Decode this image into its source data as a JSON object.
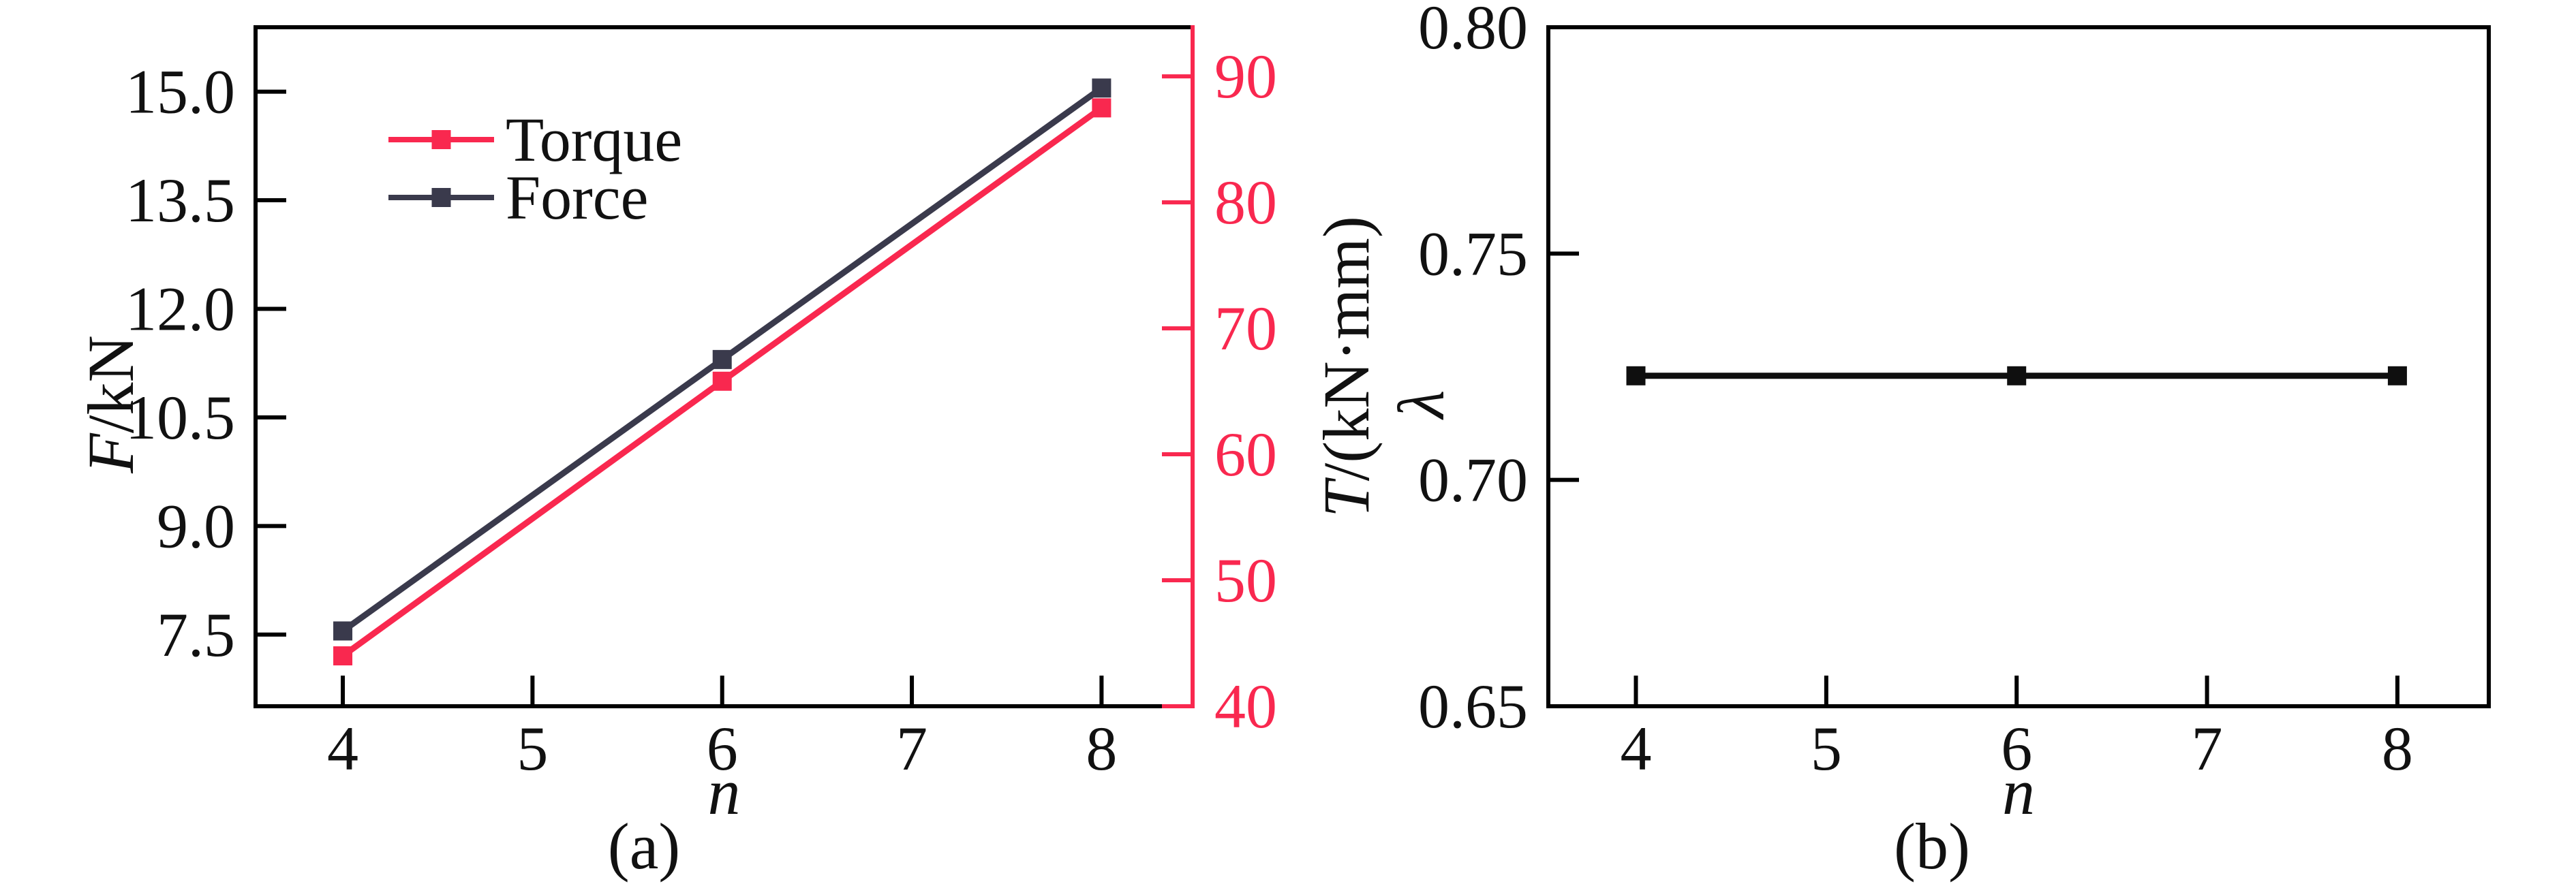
{
  "figure": {
    "background": "#ffffff",
    "axis_color": "#000000",
    "accent_red": "#F9284F",
    "accent_dark": "#3A3A4C"
  },
  "chart_data": [
    {
      "id": "a",
      "type": "line",
      "caption": "(a)",
      "x": {
        "label_parts": [
          {
            "text": "n",
            "italic": true
          }
        ],
        "lim": [
          3.54,
          8.48
        ],
        "ticks": [
          {
            "v": 4,
            "label": "4"
          },
          {
            "v": 5,
            "label": "5"
          },
          {
            "v": 6,
            "label": "6"
          },
          {
            "v": 7,
            "label": "7"
          },
          {
            "v": 8,
            "label": "8"
          }
        ]
      },
      "y_left": {
        "label_parts": [
          {
            "text": "F",
            "italic": true
          },
          {
            "text": "/kN",
            "italic": false
          }
        ],
        "lim": [
          6.51,
          15.89
        ],
        "color": "#000000",
        "ticks": [
          {
            "v": 7.5,
            "label": "7.5"
          },
          {
            "v": 9.0,
            "label": "9.0"
          },
          {
            "v": 10.5,
            "label": "10.5"
          },
          {
            "v": 12.0,
            "label": "12.0"
          },
          {
            "v": 13.5,
            "label": "13.5"
          },
          {
            "v": 15.0,
            "label": "15.0"
          }
        ]
      },
      "y_right": {
        "label_parts": [
          {
            "text": "T",
            "italic": true
          },
          {
            "text": "/(kN·mm)",
            "italic": false
          }
        ],
        "lim": [
          40,
          93.9
        ],
        "color": "#F9284F",
        "ticks": [
          {
            "v": 40,
            "label": "40"
          },
          {
            "v": 50,
            "label": "50"
          },
          {
            "v": 60,
            "label": "60"
          },
          {
            "v": 70,
            "label": "70"
          },
          {
            "v": 80,
            "label": "80"
          },
          {
            "v": 90,
            "label": "90"
          }
        ]
      },
      "series": [
        {
          "name": "Torque",
          "axis": "right",
          "color": "#F9284F",
          "x": [
            4,
            6,
            8
          ],
          "y": [
            44.0,
            65.8,
            87.5
          ]
        },
        {
          "name": "Force",
          "axis": "left",
          "color": "#3A3A4C",
          "x": [
            4,
            6,
            8
          ],
          "y": [
            7.55,
            11.3,
            15.05
          ]
        }
      ],
      "legend": {
        "items": [
          {
            "label": "Torque",
            "color": "#F9284F"
          },
          {
            "label": "Force",
            "color": "#3A3A4C"
          }
        ]
      }
    },
    {
      "id": "b",
      "type": "line",
      "caption": "(b)",
      "x": {
        "label_parts": [
          {
            "text": "n",
            "italic": true
          }
        ],
        "lim": [
          3.54,
          8.48
        ],
        "ticks": [
          {
            "v": 4,
            "label": "4"
          },
          {
            "v": 5,
            "label": "5"
          },
          {
            "v": 6,
            "label": "6"
          },
          {
            "v": 7,
            "label": "7"
          },
          {
            "v": 8,
            "label": "8"
          }
        ]
      },
      "y_left": {
        "label_parts": [
          {
            "text": "λ",
            "italic": true
          }
        ],
        "lim": [
          0.65,
          0.8
        ],
        "color": "#000000",
        "ticks": [
          {
            "v": 0.65,
            "label": "0.65"
          },
          {
            "v": 0.7,
            "label": "0.70"
          },
          {
            "v": 0.75,
            "label": "0.75"
          },
          {
            "v": 0.8,
            "label": "0.80"
          }
        ]
      },
      "series": [
        {
          "name": "λ",
          "axis": "left",
          "color": "#0f0f0f",
          "x": [
            4,
            6,
            8
          ],
          "y": [
            0.723,
            0.723,
            0.723
          ]
        }
      ]
    }
  ]
}
